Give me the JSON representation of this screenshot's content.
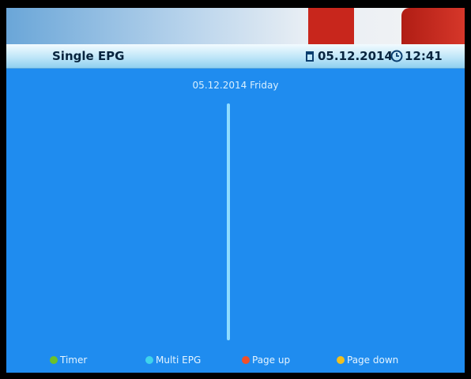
{
  "header": {
    "title": "Single EPG",
    "date": "05.12.2014",
    "time": "12:41"
  },
  "date_heading": "05.12.2014  Friday",
  "buttons": [
    {
      "label": "Timer"
    },
    {
      "label": "Multi EPG"
    },
    {
      "label": "Page up"
    },
    {
      "label": "Page down"
    }
  ]
}
